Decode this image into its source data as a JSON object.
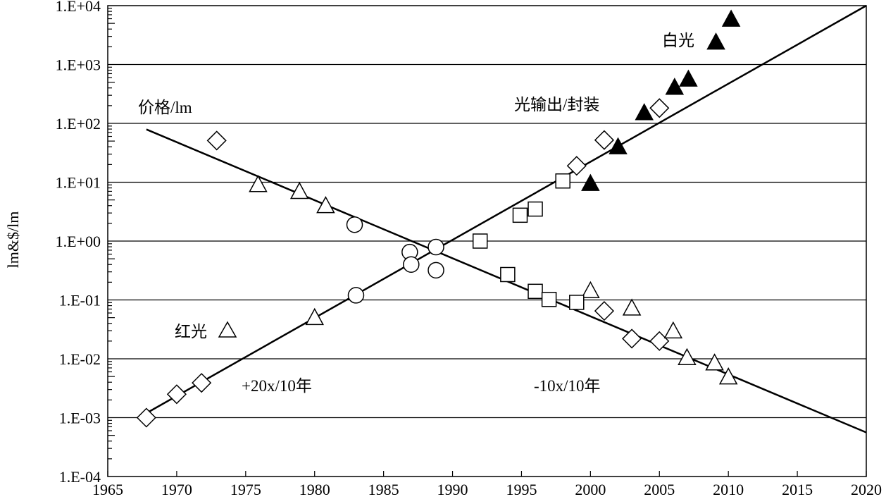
{
  "chart_data": {
    "type": "scatter",
    "title": "",
    "xlabel": "",
    "ylabel": "lm&$/lm",
    "yscale": "log",
    "xlim": [
      1965,
      2020
    ],
    "ylim": [
      0.0001,
      10000
    ],
    "grid": "horizontal",
    "x_ticks": [
      "1965",
      "1970",
      "1975",
      "1980",
      "1985",
      "1990",
      "1995",
      "2000",
      "2005",
      "2010",
      "2015",
      "2020"
    ],
    "y_ticks": [
      "1.E+04",
      "1.E+03",
      "1.E+02",
      "1.E+01",
      "1.E+00",
      "1.E-01",
      "1.E-02",
      "1.E-03",
      "1.E-04"
    ],
    "annotations": {
      "price": "价格/lm",
      "flux": "光输出/封装",
      "white": "白光",
      "red": "红光",
      "up_rate": "+20x/10年",
      "down_rate": "-10x/10年"
    },
    "trend_lines": [
      {
        "name": "flux-trend",
        "x": [
          1967.6,
          2020
        ],
        "y": [
          0.00112,
          10000
        ]
      },
      {
        "name": "price-trend",
        "x": [
          1967.8,
          2020
        ],
        "y": [
          79,
          0.00056
        ]
      }
    ],
    "series": [
      {
        "name": "diamond",
        "marker": "diamond",
        "filled": false,
        "x": [
          1967.8,
          1970,
          1971.8,
          1972.9,
          1999,
          2001,
          2005,
          2001,
          2003,
          2005
        ],
        "y": [
          0.001,
          0.0025,
          0.0039,
          51,
          19,
          52,
          182,
          0.065,
          0.022,
          0.02
        ]
      },
      {
        "name": "triangle",
        "marker": "triangle",
        "filled": false,
        "x": [
          1975.9,
          1978.9,
          1980.8,
          1980,
          2000,
          2003,
          2006,
          2007,
          2009,
          2010
        ],
        "y": [
          8.9,
          6.8,
          3.9,
          0.049,
          0.14,
          0.071,
          0.029,
          0.0102,
          0.0083,
          0.0048
        ]
      },
      {
        "name": "circle",
        "marker": "circle",
        "filled": false,
        "x": [
          1982.9,
          1983,
          1986.9,
          1987,
          1988.8,
          1988.8
        ],
        "y": [
          1.9,
          0.12,
          0.65,
          0.4,
          0.79,
          0.32
        ]
      },
      {
        "name": "square",
        "marker": "square",
        "filled": false,
        "x": [
          1992,
          1998,
          1994.9,
          1996,
          1994,
          1996,
          1997,
          1999
        ],
        "y": [
          1.0,
          10.5,
          2.75,
          3.5,
          0.27,
          0.14,
          0.102,
          0.091
        ]
      },
      {
        "name": "filled-triangle",
        "marker": "triangle",
        "filled": true,
        "x": [
          2000,
          2002,
          2003.9,
          2006.1,
          2007.1,
          2009.1,
          2010.2
        ],
        "y": [
          9.3,
          39,
          148,
          400,
          550,
          2340,
          5750
        ]
      }
    ]
  }
}
